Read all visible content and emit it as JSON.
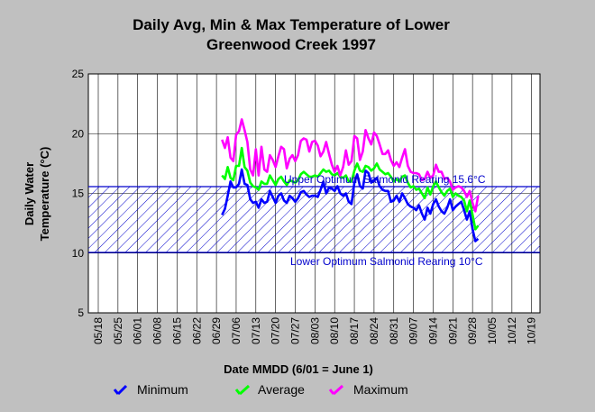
{
  "chart_data": {
    "type": "line",
    "title_line1": "Daily Avg, Min & Max Temperature of Lower",
    "title_line2": "Greenwood Creek 1997",
    "xlabel": "Date MMDD (6/01 = June 1)",
    "ylabel_line1": "Daily Water",
    "ylabel_line2": "Temperature (°C)",
    "ylim": [
      5,
      25
    ],
    "yticks": [
      "5",
      "10",
      "15",
      "20",
      "25"
    ],
    "xticks": [
      "05/18",
      "05/25",
      "06/01",
      "06/08",
      "06/15",
      "06/22",
      "06/29",
      "07/06",
      "07/13",
      "07/20",
      "07/27",
      "08/03",
      "08/10",
      "08/17",
      "08/24",
      "08/31",
      "09/07",
      "09/14",
      "09/21",
      "09/28",
      "10/05",
      "10/12",
      "10/19"
    ],
    "reference_lines": [
      {
        "label": "Upper Optimum Salmonid Rearing 15.6°C",
        "value": 15.6
      },
      {
        "label": "Lower Optimum Salmonid Rearing 10°C",
        "value": 10
      }
    ],
    "colors": {
      "minimum": "#0000ff",
      "average": "#00ff00",
      "maximum": "#ff00ff",
      "reference": "#0000cc"
    },
    "x_start_date": "07/01",
    "series": [
      {
        "name": "Minimum",
        "values": [
          13.2,
          13.7,
          14.8,
          16.0,
          15.5,
          15.5,
          15.8,
          17.0,
          15.8,
          15.7,
          14.5,
          14.2,
          14.3,
          13.8,
          14.5,
          14.2,
          14.3,
          15.2,
          14.7,
          14.2,
          14.8,
          15.0,
          14.4,
          14.2,
          14.8,
          14.6,
          14.3,
          14.6,
          15.1,
          15.2,
          14.9,
          14.7,
          14.8,
          14.8,
          14.7,
          15.3,
          16.0,
          15.0,
          15.5,
          15.4,
          15.2,
          15.6,
          15.0,
          14.8,
          15.0,
          14.3,
          14.1,
          15.9,
          16.6,
          15.6,
          15.4,
          16.9,
          16.7,
          15.9,
          16.1,
          16.3,
          15.6,
          15.3,
          15.2,
          15.2,
          14.3,
          14.4,
          14.8,
          14.3,
          15.0,
          14.6,
          14.1,
          13.9,
          13.8,
          13.6,
          14.0,
          13.3,
          12.8,
          13.8,
          13.3,
          14.1,
          14.5,
          13.9,
          13.5,
          13.3,
          13.8,
          14.5,
          13.6,
          13.9,
          14.1,
          14.3,
          13.6,
          12.8,
          13.5,
          12.0,
          11.0,
          11.2
        ]
      },
      {
        "name": "Average",
        "values": [
          16.5,
          16.2,
          17.2,
          16.3,
          16.1,
          17.3,
          17.3,
          18.8,
          17.2,
          16.9,
          15.9,
          15.6,
          15.5,
          15.3,
          16.0,
          15.8,
          15.8,
          16.5,
          16.1,
          15.7,
          16.2,
          16.4,
          16.0,
          15.7,
          16.1,
          16.0,
          15.9,
          16.1,
          16.6,
          16.8,
          16.6,
          16.4,
          16.4,
          16.5,
          16.4,
          16.7,
          17.0,
          16.8,
          16.9,
          16.6,
          16.5,
          16.7,
          16.4,
          16.3,
          16.5,
          16.0,
          16.0,
          16.9,
          17.5,
          16.9,
          16.8,
          17.3,
          17.2,
          16.9,
          17.1,
          17.5,
          17.0,
          16.8,
          16.6,
          16.7,
          16.4,
          16.0,
          16.2,
          16.0,
          16.4,
          16.5,
          15.9,
          15.5,
          15.6,
          15.3,
          15.4,
          15.0,
          14.6,
          15.5,
          14.9,
          15.6,
          16.0,
          15.5,
          15.1,
          14.8,
          15.2,
          15.4,
          14.7,
          15.0,
          14.8,
          14.7,
          14.4,
          13.5,
          14.4,
          13.2,
          12.0,
          12.3
        ]
      },
      {
        "name": "Maximum",
        "values": [
          19.5,
          18.8,
          19.7,
          18.0,
          17.7,
          19.9,
          20.2,
          21.2,
          20.3,
          19.3,
          17.0,
          16.5,
          18.7,
          16.5,
          18.9,
          17.0,
          16.8,
          18.2,
          17.8,
          17.2,
          18.1,
          18.9,
          18.7,
          17.1,
          17.9,
          18.2,
          17.7,
          18.2,
          19.4,
          19.6,
          19.5,
          18.5,
          19.3,
          19.4,
          19.0,
          18.1,
          18.5,
          19.3,
          18.3,
          17.4,
          16.8,
          17.3,
          16.5,
          17.2,
          18.6,
          17.4,
          17.7,
          19.8,
          19.6,
          17.8,
          18.5,
          20.3,
          19.6,
          19.1,
          20.1,
          19.8,
          19.1,
          18.3,
          18.3,
          18.6,
          17.8,
          17.3,
          17.6,
          17.2,
          18.0,
          18.7,
          17.3,
          16.8,
          16.7,
          16.7,
          16.6,
          16.1,
          16.2,
          16.8,
          16.3,
          16.5,
          17.4,
          16.8,
          16.8,
          16.2,
          16.3,
          16.0,
          15.3,
          15.5,
          15.6,
          15.5,
          15.2,
          14.7,
          15.2,
          14.2,
          13.5,
          14.8
        ]
      }
    ],
    "legend": [
      "Minimum",
      "Average",
      "Maximum"
    ]
  }
}
